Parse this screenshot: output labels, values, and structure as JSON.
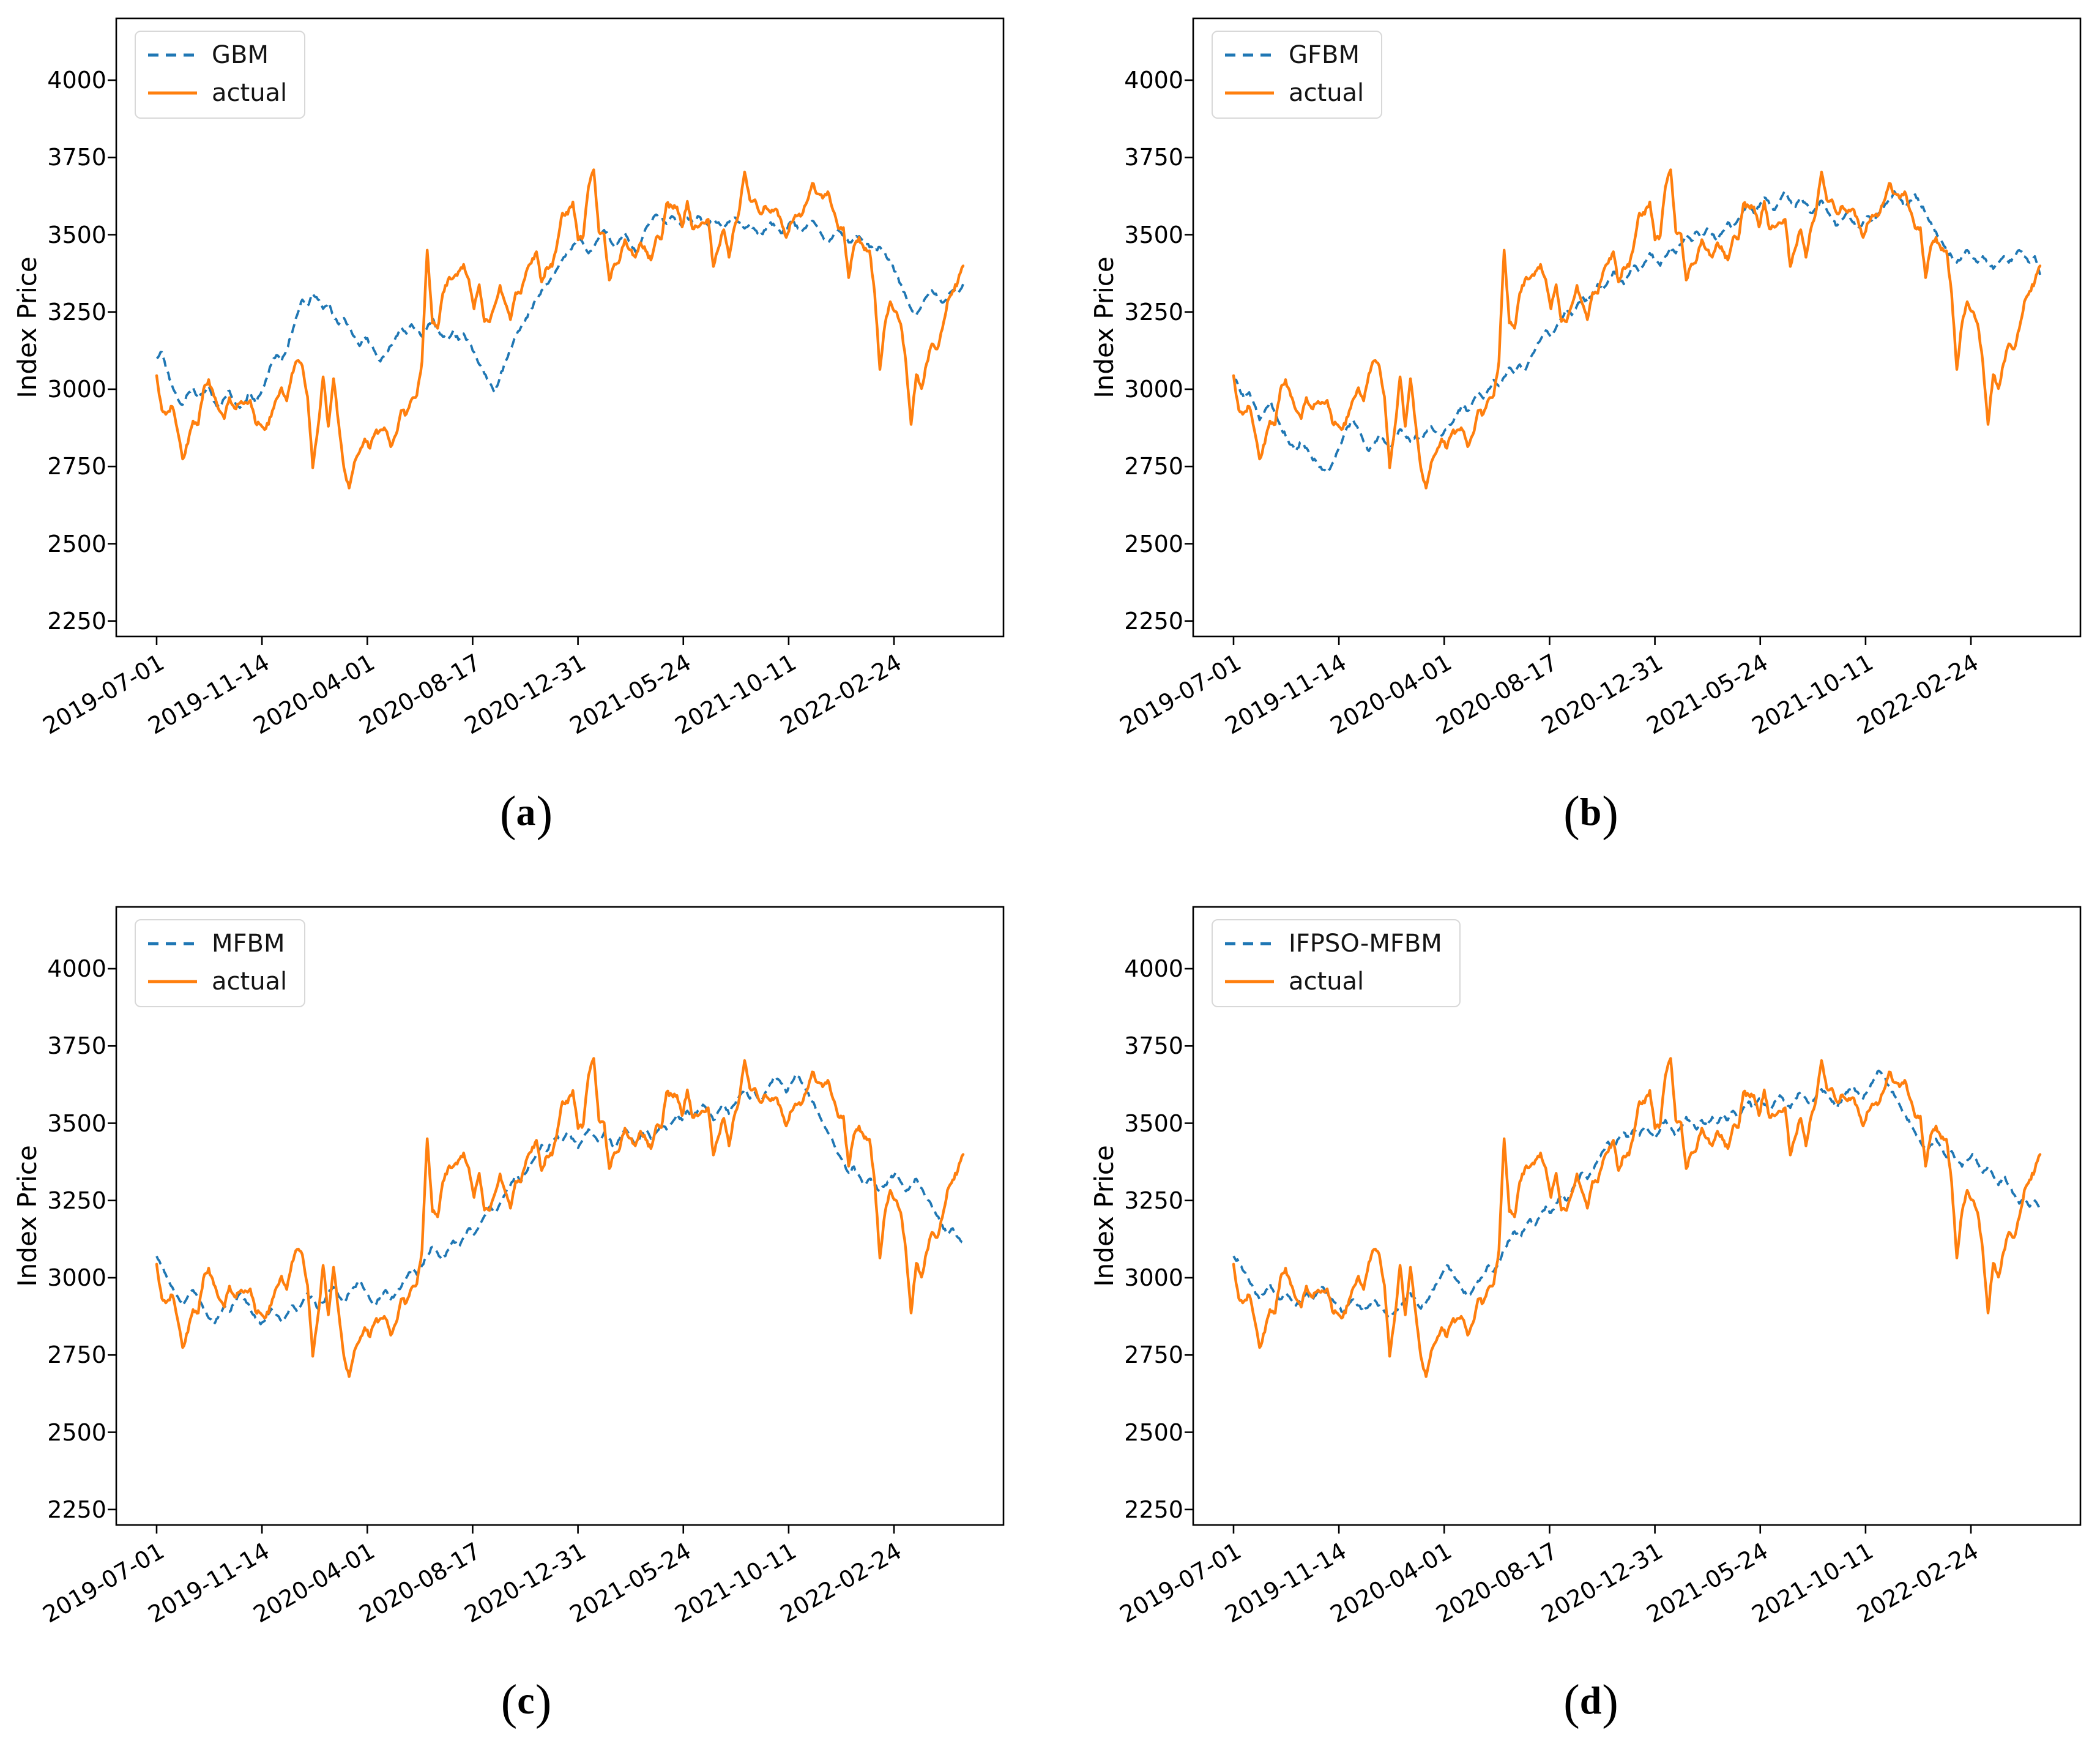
{
  "figure": {
    "background": "#ffffff"
  },
  "chart_data": {
    "type": "line",
    "ylabel": "Index Price",
    "yticks": [
      2250,
      2500,
      2750,
      3000,
      3250,
      3500,
      3750,
      4000
    ],
    "ylim": [
      2200,
      4200
    ],
    "x_tick_labels": [
      "2019-07-01",
      "2019-11-14",
      "2020-04-01",
      "2020-08-17",
      "2020-12-31",
      "2021-05-24",
      "2021-10-11",
      "2022-02-24"
    ],
    "x_tick_days": [
      0,
      96,
      192,
      288,
      384,
      480,
      576,
      672
    ],
    "x_total_days": 735,
    "x_margin_frac": 0.0455,
    "grid": "off",
    "legend_position": "upper-left",
    "legend_actual_label": "actual",
    "colors": {
      "model": "#1f77b4",
      "actual": "#ff7f0e",
      "axis": "#000000"
    },
    "actual_values": [
      3044,
      2933,
      2924,
      2944,
      2868,
      2774,
      2824,
      2897,
      2886,
      2999,
      3031,
      2978,
      2932,
      2905,
      2973,
      2938,
      2955,
      2958,
      2964,
      2891,
      2885,
      2872,
      2912,
      2968,
      3005,
      2962,
      3050,
      3092,
      3075,
      2976,
      2746,
      2875,
      3040,
      2880,
      3034,
      2887,
      2745,
      2680,
      2763,
      2797,
      2839,
      2809,
      2860,
      2868,
      2868,
      2814,
      2853,
      2931,
      2920,
      2967,
      2980,
      3090,
      3450,
      3214,
      3197,
      3310,
      3354,
      3360,
      3380,
      3404,
      3355,
      3260,
      3338,
      3219,
      3218,
      3272,
      3336,
      3278,
      3225,
      3312,
      3310,
      3378,
      3408,
      3445,
      3347,
      3394,
      3397,
      3473,
      3570,
      3566,
      3606,
      3483,
      3496,
      3655,
      3710,
      3509,
      3502,
      3353,
      3405,
      3418,
      3484,
      3451,
      3427,
      3474,
      3447,
      3418,
      3490,
      3486,
      3600,
      3592,
      3590,
      3525,
      3608,
      3519,
      3524,
      3539,
      3550,
      3397,
      3458,
      3516,
      3427,
      3522,
      3581,
      3703,
      3613,
      3613,
      3568,
      3592,
      3572,
      3583,
      3547,
      3491,
      3539,
      3560,
      3564,
      3607,
      3666,
      3632,
      3618,
      3639,
      3579,
      3521,
      3523,
      3361,
      3462,
      3491,
      3451,
      3448,
      3310,
      3064,
      3212,
      3283,
      3252,
      3211,
      3087,
      2886,
      3047,
      3002,
      3084,
      3147,
      3130,
      3195,
      3284,
      3317,
      3349,
      3399
    ],
    "panels": [
      {
        "id": "a",
        "cap_open": "(",
        "cap_letter": "a",
        "cap_close": ")",
        "model_name": "GBM",
        "model_values": [
          3100,
          3120,
          3060,
          3010,
          2970,
          2950,
          2985,
          3005,
          2970,
          2990,
          3010,
          2960,
          2940,
          2970,
          2995,
          2960,
          2940,
          2960,
          2990,
          2955,
          2985,
          3030,
          3080,
          3110,
          3090,
          3130,
          3180,
          3240,
          3290,
          3270,
          3310,
          3290,
          3260,
          3280,
          3240,
          3210,
          3230,
          3200,
          3170,
          3140,
          3170,
          3150,
          3120,
          3090,
          3110,
          3140,
          3170,
          3200,
          3180,
          3210,
          3190,
          3170,
          3200,
          3230,
          3190,
          3170,
          3160,
          3190,
          3160,
          3180,
          3150,
          3120,
          3080,
          3050,
          3020,
          2990,
          3040,
          3090,
          3130,
          3170,
          3200,
          3230,
          3260,
          3290,
          3320,
          3340,
          3360,
          3390,
          3420,
          3440,
          3465,
          3490,
          3470,
          3440,
          3460,
          3490,
          3515,
          3490,
          3460,
          3485,
          3505,
          3475,
          3445,
          3470,
          3520,
          3545,
          3565,
          3550,
          3535,
          3560,
          3545,
          3530,
          3555,
          3540,
          3560,
          3545,
          3530,
          3550,
          3540,
          3520,
          3540,
          3555,
          3540,
          3520,
          3535,
          3515,
          3495,
          3515,
          3540,
          3525,
          3505,
          3520,
          3545,
          3530,
          3510,
          3530,
          3545,
          3525,
          3495,
          3475,
          3495,
          3515,
          3495,
          3475,
          3485,
          3495,
          3480,
          3460,
          3450,
          3460,
          3440,
          3410,
          3380,
          3340,
          3300,
          3260,
          3240,
          3270,
          3300,
          3320,
          3300,
          3280,
          3300,
          3320,
          3310,
          3340
        ]
      },
      {
        "id": "b",
        "cap_open": "(",
        "cap_letter": "b",
        "cap_close": ")",
        "model_name": "GFBM",
        "model_values": [
          3040,
          3010,
          2970,
          2990,
          2950,
          2900,
          2930,
          2960,
          2920,
          2880,
          2850,
          2820,
          2800,
          2830,
          2810,
          2780,
          2760,
          2740,
          2730,
          2760,
          2800,
          2840,
          2880,
          2900,
          2870,
          2830,
          2800,
          2820,
          2850,
          2830,
          2810,
          2840,
          2870,
          2850,
          2830,
          2850,
          2840,
          2860,
          2880,
          2860,
          2850,
          2870,
          2890,
          2920,
          2950,
          2930,
          2960,
          2990,
          2970,
          3000,
          3030,
          3010,
          3040,
          3070,
          3050,
          3080,
          3060,
          3100,
          3130,
          3160,
          3190,
          3170,
          3200,
          3230,
          3260,
          3240,
          3270,
          3300,
          3280,
          3310,
          3340,
          3320,
          3350,
          3380,
          3360,
          3340,
          3370,
          3400,
          3380,
          3410,
          3440,
          3420,
          3400,
          3430,
          3460,
          3440,
          3470,
          3500,
          3480,
          3510,
          3490,
          3520,
          3500,
          3480,
          3510,
          3540,
          3520,
          3550,
          3580,
          3600,
          3570,
          3590,
          3620,
          3600,
          3580,
          3610,
          3640,
          3610,
          3590,
          3620,
          3600,
          3570,
          3590,
          3610,
          3580,
          3550,
          3530,
          3550,
          3570,
          3540,
          3520,
          3540,
          3560,
          3540,
          3570,
          3590,
          3610,
          3640,
          3620,
          3590,
          3610,
          3630,
          3600,
          3570,
          3540,
          3510,
          3480,
          3450,
          3430,
          3410,
          3430,
          3450,
          3430,
          3410,
          3430,
          3410,
          3390,
          3410,
          3430,
          3410,
          3430,
          3450,
          3430,
          3410,
          3430,
          3370
        ]
      },
      {
        "id": "c",
        "cap_open": "(",
        "cap_letter": "c",
        "cap_close": ")",
        "model_name": "MFBM",
        "model_values": [
          3070,
          3040,
          3000,
          2970,
          2940,
          2910,
          2940,
          2960,
          2930,
          2900,
          2870,
          2850,
          2880,
          2910,
          2890,
          2920,
          2950,
          2930,
          2900,
          2870,
          2850,
          2870,
          2900,
          2880,
          2860,
          2880,
          2910,
          2890,
          2920,
          2950,
          2930,
          2900,
          2920,
          2950,
          2970,
          2940,
          2920,
          2950,
          2970,
          2990,
          2960,
          2930,
          2910,
          2940,
          2960,
          2930,
          2950,
          2970,
          3000,
          3030,
          3010,
          3040,
          3070,
          3100,
          3080,
          3060,
          3090,
          3120,
          3100,
          3130,
          3160,
          3140,
          3170,
          3200,
          3230,
          3210,
          3240,
          3270,
          3300,
          3330,
          3310,
          3340,
          3370,
          3400,
          3430,
          3410,
          3440,
          3460,
          3440,
          3470,
          3450,
          3420,
          3450,
          3480,
          3460,
          3440,
          3470,
          3450,
          3420,
          3450,
          3480,
          3460,
          3430,
          3460,
          3480,
          3450,
          3470,
          3500,
          3480,
          3500,
          3530,
          3510,
          3540,
          3520,
          3540,
          3560,
          3540,
          3510,
          3540,
          3560,
          3530,
          3560,
          3590,
          3610,
          3580,
          3600,
          3570,
          3600,
          3630,
          3650,
          3630,
          3600,
          3630,
          3660,
          3630,
          3600,
          3570,
          3540,
          3500,
          3470,
          3440,
          3400,
          3370,
          3340,
          3360,
          3330,
          3300,
          3320,
          3300,
          3280,
          3300,
          3320,
          3340,
          3310,
          3280,
          3300,
          3320,
          3290,
          3260,
          3230,
          3200,
          3170,
          3140,
          3160,
          3130,
          3115
        ]
      },
      {
        "id": "d",
        "cap_open": "(",
        "cap_letter": "d",
        "cap_close": ")",
        "model_name": "IFPSO-MFBM",
        "model_values": [
          3070,
          3050,
          3020,
          2990,
          2960,
          2930,
          2950,
          2980,
          2950,
          2930,
          2950,
          2930,
          2910,
          2930,
          2950,
          2930,
          2950,
          2970,
          2950,
          2930,
          2910,
          2890,
          2910,
          2930,
          2910,
          2890,
          2910,
          2930,
          2910,
          2890,
          2870,
          2890,
          2910,
          2930,
          2950,
          2930,
          2900,
          2920,
          2950,
          2980,
          3010,
          3040,
          3020,
          2990,
          2960,
          2940,
          2960,
          2990,
          3010,
          3040,
          3020,
          3050,
          3090,
          3120,
          3150,
          3130,
          3160,
          3190,
          3170,
          3200,
          3230,
          3210,
          3240,
          3270,
          3250,
          3280,
          3310,
          3340,
          3320,
          3350,
          3380,
          3410,
          3440,
          3420,
          3450,
          3470,
          3450,
          3480,
          3460,
          3490,
          3470,
          3450,
          3480,
          3510,
          3490,
          3460,
          3490,
          3520,
          3500,
          3480,
          3510,
          3490,
          3520,
          3500,
          3530,
          3510,
          3540,
          3520,
          3550,
          3570,
          3550,
          3580,
          3560,
          3540,
          3570,
          3590,
          3570,
          3550,
          3580,
          3600,
          3580,
          3560,
          3590,
          3610,
          3590,
          3570,
          3550,
          3580,
          3600,
          3620,
          3600,
          3580,
          3610,
          3640,
          3670,
          3650,
          3620,
          3590,
          3560,
          3530,
          3500,
          3470,
          3440,
          3410,
          3430,
          3450,
          3420,
          3390,
          3410,
          3380,
          3360,
          3380,
          3400,
          3370,
          3340,
          3360,
          3330,
          3300,
          3330,
          3300,
          3270,
          3240,
          3260,
          3230,
          3250,
          3220
        ]
      }
    ]
  }
}
